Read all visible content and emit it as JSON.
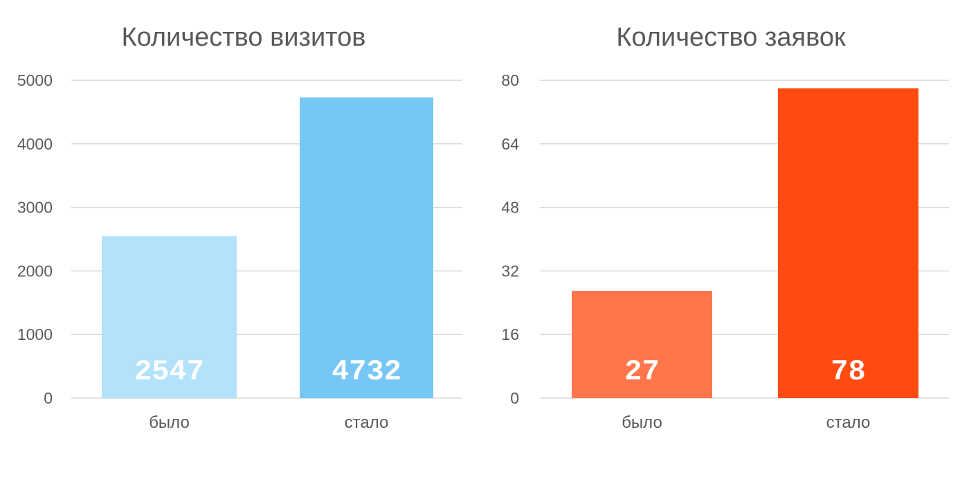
{
  "chart_data": [
    {
      "type": "bar",
      "title": "Количество визитов",
      "categories": [
        "было",
        "стало"
      ],
      "values": [
        2547,
        4732
      ],
      "data_labels": [
        "2547",
        "4732"
      ],
      "colors": [
        "#b3e2fb",
        "#77c7f6"
      ],
      "ylim": [
        0,
        5000
      ],
      "yticks": [
        "0",
        "1000",
        "2000",
        "3000",
        "4000",
        "5000"
      ],
      "grid": true,
      "xlabel": "",
      "ylabel": ""
    },
    {
      "type": "bar",
      "title": "Количество заявок",
      "categories": [
        "было",
        "стало"
      ],
      "values": [
        27,
        78
      ],
      "data_labels": [
        "27",
        "78"
      ],
      "colors": [
        "#ff764d",
        "#ff4a10"
      ],
      "ylim": [
        0,
        80
      ],
      "yticks": [
        "0",
        "16",
        "32",
        "48",
        "64",
        "80"
      ],
      "grid": true,
      "xlabel": "",
      "ylabel": ""
    }
  ]
}
